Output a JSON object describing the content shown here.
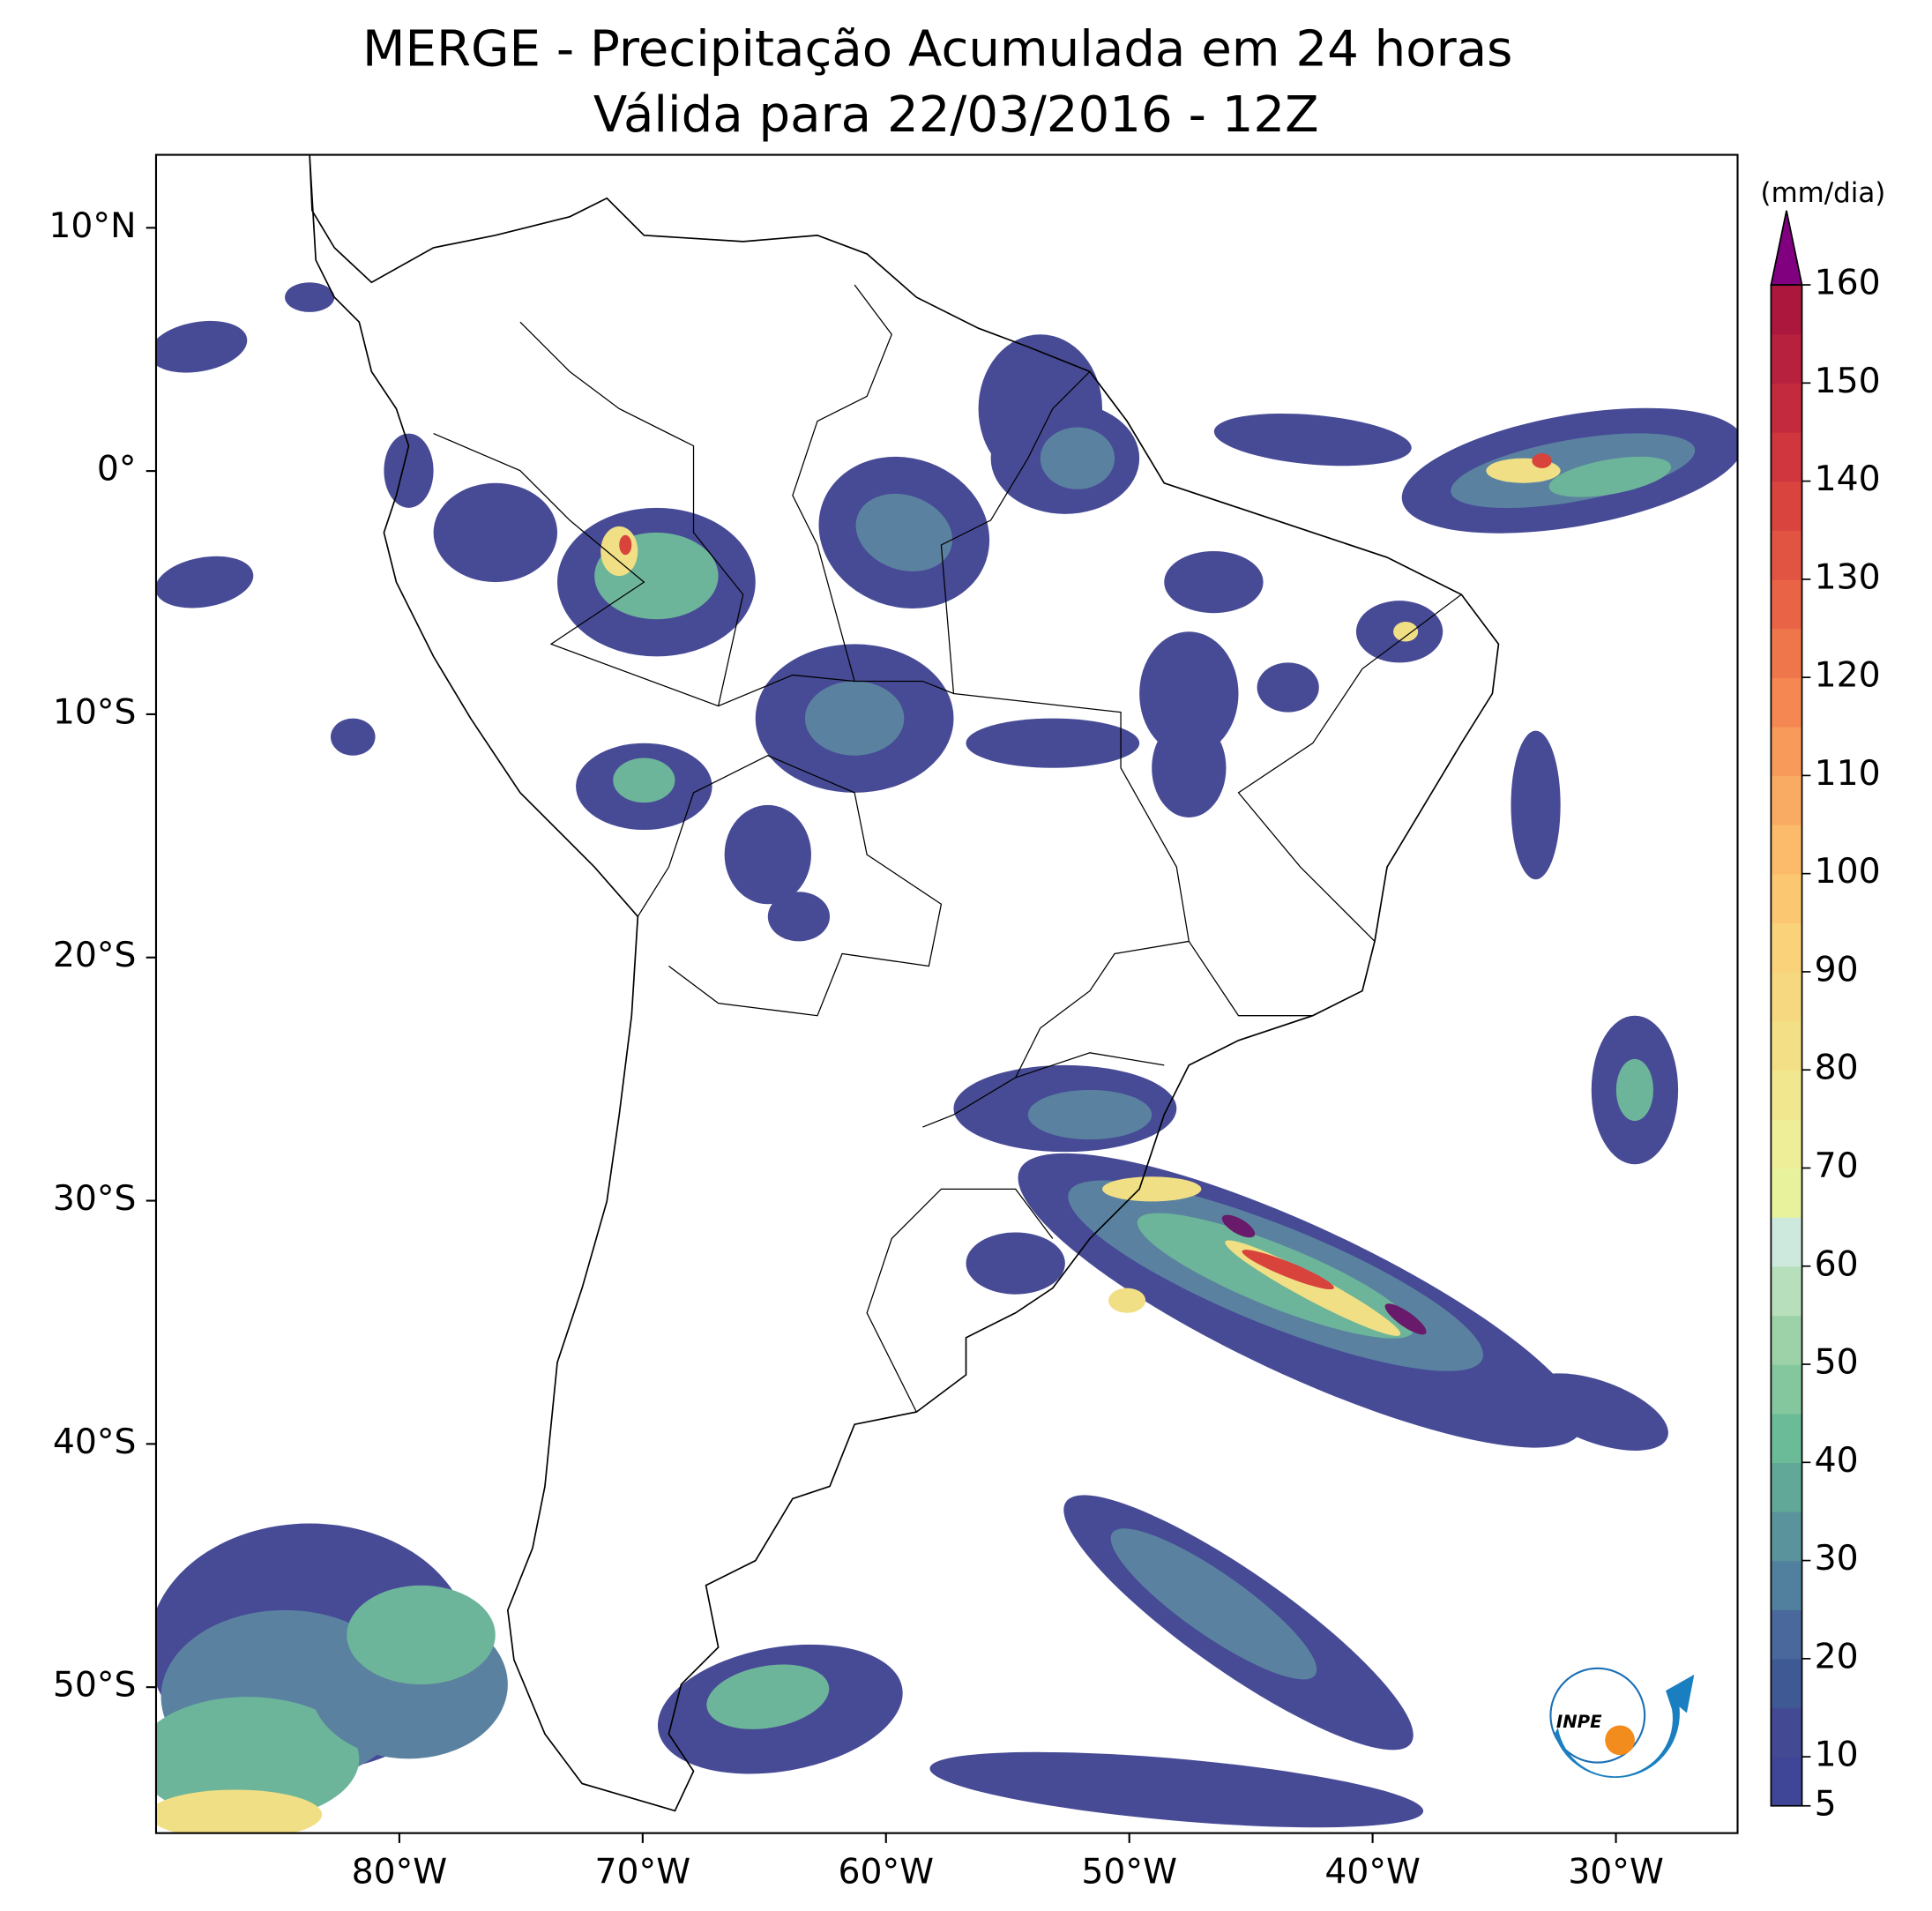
{
  "title": "MERGE - Precipitação Acumulada em 24 horas",
  "subtitle": "Válida para 22/03/2016 - 12Z",
  "map": {
    "xlim": [
      -90,
      -25
    ],
    "ylim": [
      -56,
      13
    ],
    "xticks": [
      {
        "value": -80,
        "label": "80°W"
      },
      {
        "value": -70,
        "label": "70°W"
      },
      {
        "value": -60,
        "label": "60°W"
      },
      {
        "value": -50,
        "label": "50°W"
      },
      {
        "value": -40,
        "label": "40°W"
      },
      {
        "value": -30,
        "label": "30°W"
      }
    ],
    "yticks": [
      {
        "value": 10,
        "label": "10°N"
      },
      {
        "value": 0,
        "label": "0°"
      },
      {
        "value": -10,
        "label": "10°S"
      },
      {
        "value": -20,
        "label": "20°S"
      },
      {
        "value": -30,
        "label": "30°S"
      },
      {
        "value": -40,
        "label": "40°S"
      },
      {
        "value": -50,
        "label": "50°S"
      }
    ]
  },
  "colorbar": {
    "label": "(mm/dia)",
    "levels": [
      5,
      10,
      15,
      20,
      25,
      30,
      35,
      40,
      45,
      50,
      55,
      60,
      65,
      70,
      75,
      80,
      85,
      90,
      95,
      100,
      105,
      110,
      115,
      120,
      125,
      130,
      135,
      140,
      145,
      150,
      155,
      160
    ],
    "colors": [
      "#3f4597",
      "#434a93",
      "#3f5995",
      "#4a689b",
      "#50809d",
      "#5a939b",
      "#62a898",
      "#6cbb98",
      "#84c79f",
      "#9dd2a9",
      "#b7dfbb",
      "#cde8dc",
      "#e8f29c",
      "#eeee98",
      "#f1e78e",
      "#f3df86",
      "#f6d880",
      "#fad27a",
      "#fbc770",
      "#fbbb6a",
      "#faab63",
      "#f89a5a",
      "#f48752",
      "#ef764b",
      "#e96446",
      "#e25442",
      "#da443e",
      "#d0363e",
      "#c42a3e",
      "#b8213d",
      "#ab173d"
    ],
    "extend_color": "#800080",
    "ticks": [
      5,
      10,
      20,
      30,
      40,
      50,
      60,
      70,
      80,
      90,
      100,
      110,
      120,
      130,
      140,
      150,
      160
    ]
  },
  "logo": "INPE"
}
